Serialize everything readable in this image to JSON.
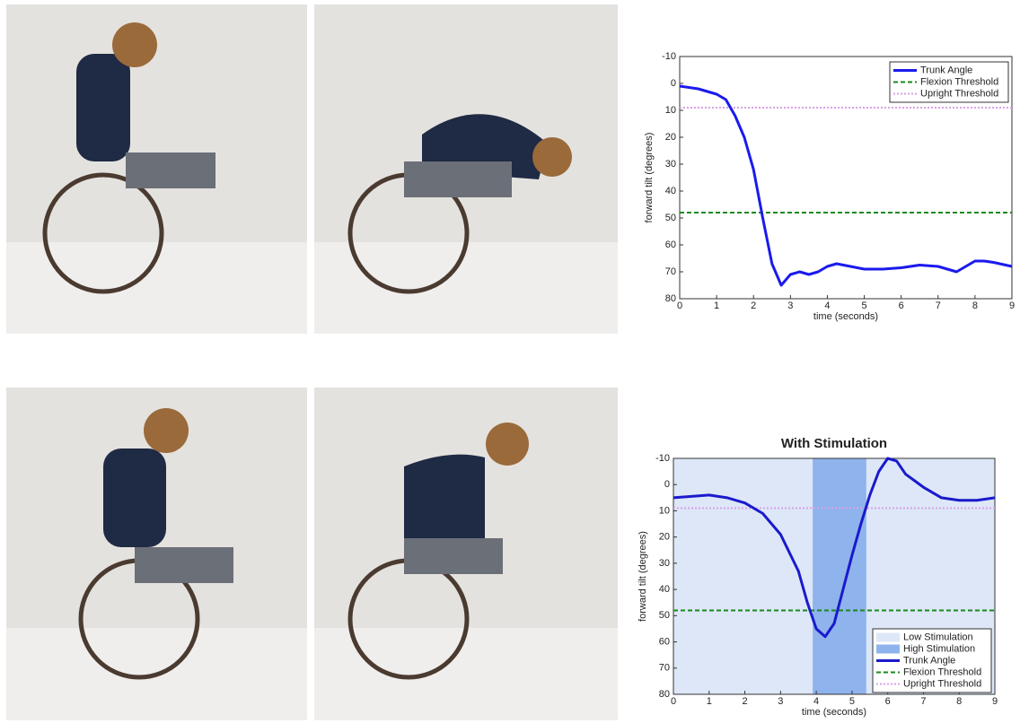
{
  "chart_data": [
    {
      "type": "line",
      "title": null,
      "xlabel": "time (seconds)",
      "ylabel": "forward tilt (degrees)",
      "x": [
        0,
        0.5,
        1,
        1.25,
        1.5,
        1.75,
        2,
        2.25,
        2.5,
        2.75,
        3,
        3.25,
        3.5,
        3.75,
        4,
        4.25,
        5,
        5.5,
        6,
        6.5,
        7,
        7.5,
        7.75,
        8,
        8.25,
        8.5,
        9
      ],
      "series": [
        {
          "name": "Trunk Angle",
          "color": "#1a1aee",
          "values": [
            1,
            2,
            4,
            6,
            12,
            20,
            32,
            50,
            67,
            75,
            71,
            70,
            71,
            70,
            68,
            67,
            69,
            69,
            68.5,
            67.5,
            68,
            70,
            68,
            66,
            66,
            66.5,
            68
          ]
        }
      ],
      "thresholds": [
        {
          "name": "Flexion Threshold",
          "color": "#1a8a1a",
          "dash": "5,3",
          "value": 48
        },
        {
          "name": "Upright Threshold",
          "color": "#d9a0e6",
          "dash": "2,2",
          "value": 9
        }
      ],
      "regions": [],
      "xlim": [
        0,
        9
      ],
      "xticks": [
        0,
        1,
        2,
        3,
        4,
        5,
        6,
        7,
        8,
        9
      ],
      "ylim": [
        -10,
        80
      ],
      "yticks": [
        -10,
        0,
        10,
        20,
        30,
        40,
        50,
        60,
        70,
        80
      ],
      "invert_y": true,
      "legend": "upper right"
    },
    {
      "type": "line",
      "title": "With Stimulation",
      "xlabel": "time (seconds)",
      "ylabel": "forward tilt (degrees)",
      "x": [
        0,
        0.5,
        1,
        1.5,
        2,
        2.5,
        3,
        3.5,
        3.75,
        4,
        4.25,
        4.5,
        4.75,
        5,
        5.25,
        5.5,
        5.75,
        6,
        6.25,
        6.5,
        7,
        7.5,
        8,
        8.5,
        9
      ],
      "series": [
        {
          "name": "Trunk Angle",
          "color": "#1a1acc",
          "values": [
            5,
            4.5,
            4,
            5,
            7,
            11,
            19,
            33,
            45,
            55,
            58,
            53,
            40,
            27,
            15,
            4,
            -5,
            -10,
            -9,
            -4,
            1,
            5,
            6,
            6,
            5
          ]
        }
      ],
      "thresholds": [
        {
          "name": "Flexion Threshold",
          "color": "#1a8a1a",
          "dash": "5,3",
          "value": 48
        },
        {
          "name": "Upright Threshold",
          "color": "#d9a0e6",
          "dash": "2,2",
          "value": 9
        }
      ],
      "regions": [
        {
          "name": "Low Stimulation",
          "color": "#dde7f8",
          "x": [
            0,
            9
          ]
        },
        {
          "name": "High Stimulation",
          "color": "#8fb3ec",
          "x": [
            3.9,
            5.4
          ]
        }
      ],
      "xlim": [
        0,
        9
      ],
      "xticks": [
        0,
        1,
        2,
        3,
        4,
        5,
        6,
        7,
        8,
        9
      ],
      "ylim": [
        -10,
        80
      ],
      "yticks": [
        -10,
        0,
        10,
        20,
        30,
        40,
        50,
        60,
        70,
        80
      ],
      "invert_y": true,
      "legend": "lower right"
    }
  ]
}
